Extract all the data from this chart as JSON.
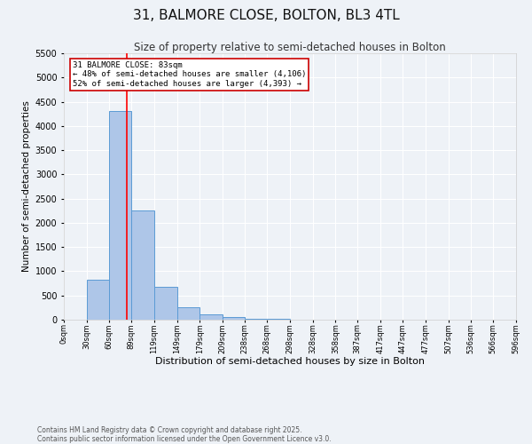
{
  "title": "31, BALMORE CLOSE, BOLTON, BL3 4TL",
  "subtitle": "Size of property relative to semi-detached houses in Bolton",
  "xlabel": "Distribution of semi-detached houses by size in Bolton",
  "ylabel": "Number of semi-detached properties",
  "bin_edges": [
    0,
    30,
    60,
    89,
    119,
    149,
    179,
    209,
    238,
    268,
    298,
    328,
    358,
    387,
    417,
    447,
    477,
    507,
    536,
    566,
    596
  ],
  "bar_heights": [
    0,
    830,
    4300,
    2250,
    680,
    260,
    110,
    60,
    25,
    10,
    5,
    3,
    2,
    1,
    1,
    0,
    0,
    0,
    0,
    0
  ],
  "bar_color": "#aec6e8",
  "bar_edge_color": "#5b9bd5",
  "background_color": "#eef2f7",
  "grid_color": "#ffffff",
  "red_line_x": 83,
  "ylim": [
    0,
    5500
  ],
  "annotation_text": "31 BALMORE CLOSE: 83sqm\n← 48% of semi-detached houses are smaller (4,106)\n52% of semi-detached houses are larger (4,393) →",
  "annotation_box_color": "#ffffff",
  "annotation_box_edge": "#cc0000",
  "footer_line1": "Contains HM Land Registry data © Crown copyright and database right 2025.",
  "footer_line2": "Contains public sector information licensed under the Open Government Licence v3.0.",
  "title_fontsize": 11,
  "subtitle_fontsize": 8.5,
  "tick_label_fontsize": 6,
  "ytick_fontsize": 7,
  "ylabel_fontsize": 7.5,
  "xlabel_fontsize": 8,
  "annotation_fontsize": 6.5,
  "footer_fontsize": 5.5
}
